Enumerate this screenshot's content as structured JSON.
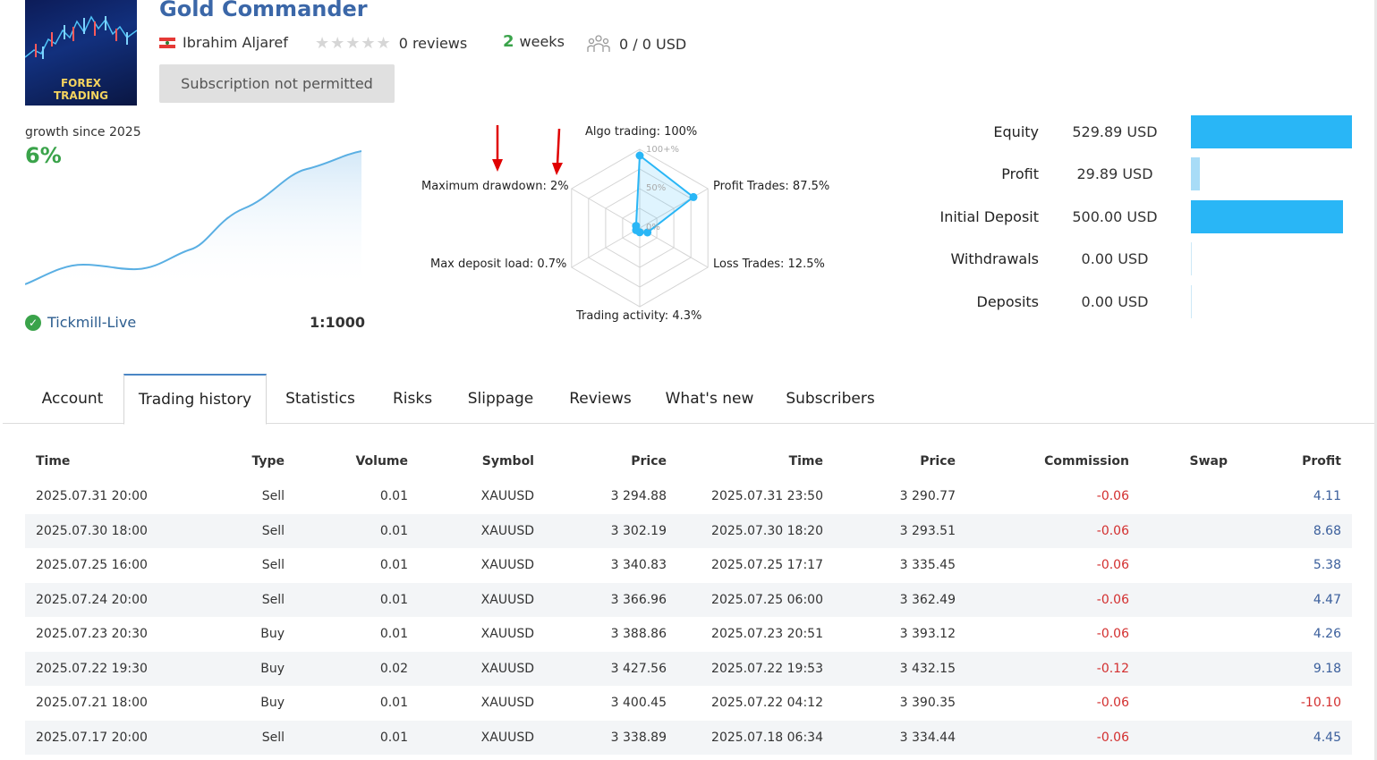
{
  "signal": {
    "title": "Gold Commander",
    "logo_line1": "FOREX",
    "logo_line2": "TRADING",
    "author": "Ibrahim Aljaref",
    "reviews": "0 reviews",
    "weeks_num": "2",
    "weeks_label": "weeks",
    "subscribers": "0 / 0 USD",
    "subscribe_label": "Subscription not permitted"
  },
  "growth": {
    "label": "growth since 2025",
    "value": "6%",
    "broker": "Tickmill-Live",
    "leverage": "1:1000"
  },
  "radar": {
    "algo": "Algo trading: 100%",
    "profit_trades": "Profit Trades: 87.5%",
    "loss_trades": "Loss Trades: 12.5%",
    "activity": "Trading activity: 4.3%",
    "deposit_load": "Max deposit load: 0.7%",
    "drawdown": "Maximum drawdown: 2%",
    "ring_100": "100+%",
    "ring_50": "50%",
    "ring_0": "0%",
    "values": [
      100,
      87.5,
      12.5,
      4.3,
      0.7,
      2
    ]
  },
  "balances": [
    {
      "label": "Equity",
      "value": "529.89 USD",
      "fraction": 1.0,
      "color": "#29b6f6"
    },
    {
      "label": "Profit",
      "value": "29.89 USD",
      "fraction": 0.056,
      "color": "#a8dcf7"
    },
    {
      "label": "Initial Deposit",
      "value": "500.00 USD",
      "fraction": 0.944,
      "color": "#29b6f6"
    },
    {
      "label": "Withdrawals",
      "value": "0.00 USD",
      "fraction": 0,
      "color": "#29b6f6"
    },
    {
      "label": "Deposits",
      "value": "0.00 USD",
      "fraction": 0,
      "color": "#29b6f6"
    }
  ],
  "tabs": [
    "Account",
    "Trading history",
    "Statistics",
    "Risks",
    "Slippage",
    "Reviews",
    "What's new",
    "Subscribers"
  ],
  "table": {
    "headers": [
      "Time",
      "Type",
      "Volume",
      "Symbol",
      "Price",
      "Time",
      "Price",
      "Commission",
      "Swap",
      "Profit"
    ],
    "rows": [
      [
        "2025.07.31 20:00",
        "Sell",
        "0.01",
        "XAUUSD",
        "3 294.88",
        "2025.07.31 23:50",
        "3 290.77",
        "-0.06",
        "",
        "4.11"
      ],
      [
        "2025.07.30 18:00",
        "Sell",
        "0.01",
        "XAUUSD",
        "3 302.19",
        "2025.07.30 18:20",
        "3 293.51",
        "-0.06",
        "",
        "8.68"
      ],
      [
        "2025.07.25 16:00",
        "Sell",
        "0.01",
        "XAUUSD",
        "3 340.83",
        "2025.07.25 17:17",
        "3 335.45",
        "-0.06",
        "",
        "5.38"
      ],
      [
        "2025.07.24 20:00",
        "Sell",
        "0.01",
        "XAUUSD",
        "3 366.96",
        "2025.07.25 06:00",
        "3 362.49",
        "-0.06",
        "",
        "4.47"
      ],
      [
        "2025.07.23 20:30",
        "Buy",
        "0.01",
        "XAUUSD",
        "3 388.86",
        "2025.07.23 20:51",
        "3 393.12",
        "-0.06",
        "",
        "4.26"
      ],
      [
        "2025.07.22 19:30",
        "Buy",
        "0.02",
        "XAUUSD",
        "3 427.56",
        "2025.07.22 19:53",
        "3 432.15",
        "-0.12",
        "",
        "9.18"
      ],
      [
        "2025.07.21 18:00",
        "Buy",
        "0.01",
        "XAUUSD",
        "3 400.45",
        "2025.07.22 04:12",
        "3 390.35",
        "-0.06",
        "",
        "-10.10"
      ],
      [
        "2025.07.17 20:00",
        "Sell",
        "0.01",
        "XAUUSD",
        "3 338.89",
        "2025.07.18 06:34",
        "3 334.44",
        "-0.06",
        "",
        "4.45"
      ]
    ]
  },
  "colors": {
    "accent": "#29b6f6",
    "positive": "#3aa34a",
    "negative": "#d32f2f",
    "arrow": "#e00000"
  }
}
